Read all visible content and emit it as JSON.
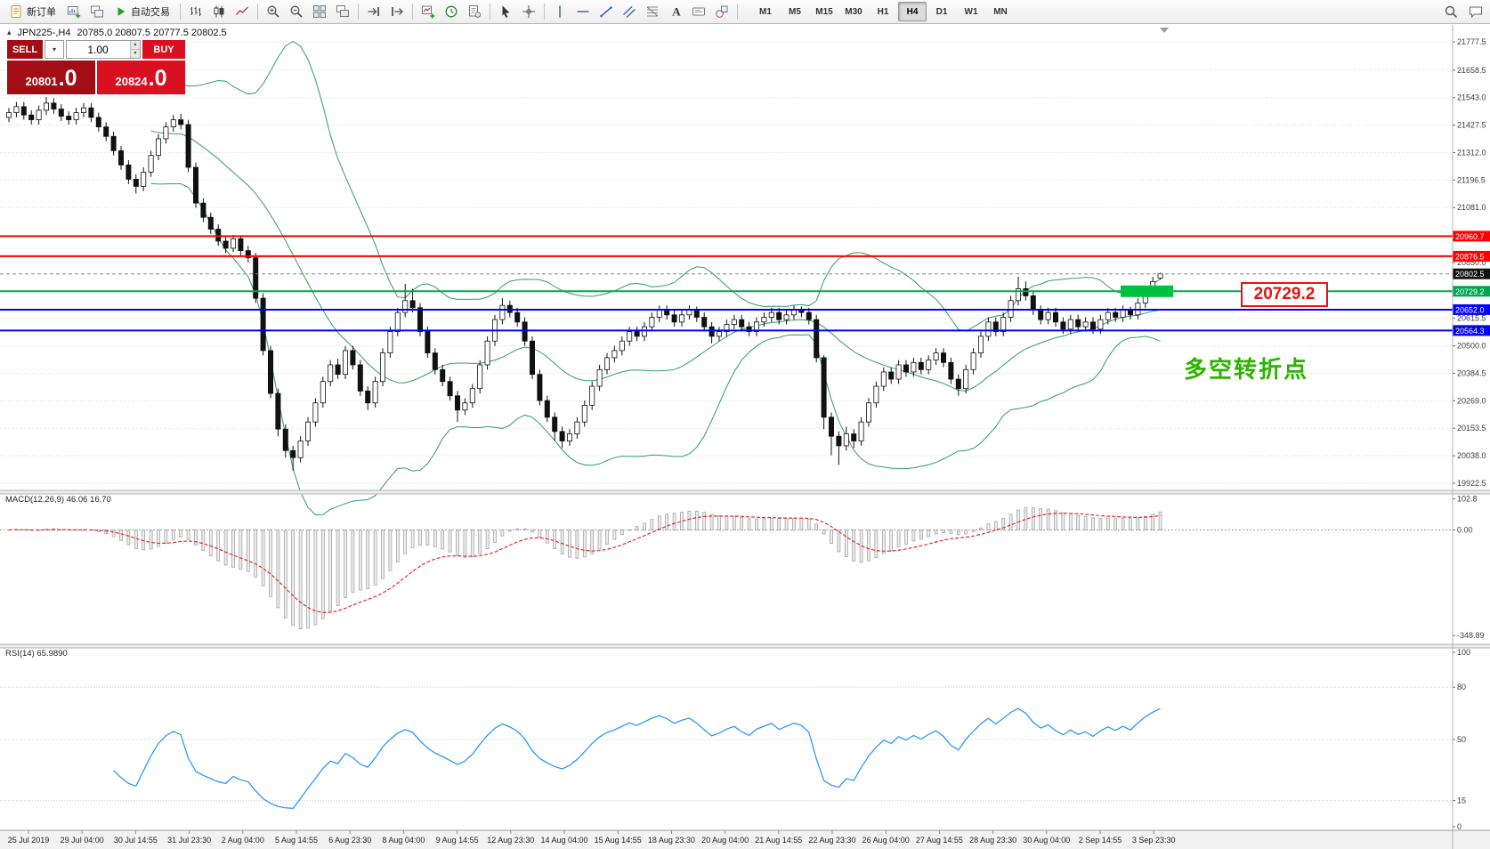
{
  "toolbar": {
    "new_order_label": "新订单",
    "auto_trading_label": "自动交易",
    "timeframes": [
      {
        "label": "M1",
        "active": false
      },
      {
        "label": "M5",
        "active": false
      },
      {
        "label": "M15",
        "active": false
      },
      {
        "label": "M30",
        "active": false
      },
      {
        "label": "H1",
        "active": false
      },
      {
        "label": "H4",
        "active": true
      },
      {
        "label": "D1",
        "active": false
      },
      {
        "label": "W1",
        "active": false
      },
      {
        "label": "MN",
        "active": false
      }
    ],
    "icon_names": [
      "new-order",
      "new-chart",
      "profiles",
      "auto-trading",
      "bars-chart",
      "candlestick-chart",
      "line-chart",
      "zoom-in",
      "zoom-out",
      "tile-windows",
      "cascade-windows",
      "auto-scroll",
      "chart-shift",
      "indicators",
      "periods",
      "templates",
      "cursor",
      "crosshair",
      "vertical-line",
      "horizontal-line",
      "trendline",
      "channel",
      "fibonacci",
      "text",
      "text-label",
      "shapes",
      "search",
      "chat"
    ]
  },
  "chart": {
    "symbol_line": {
      "symbol": "JPN225-,H4",
      "ohlc": "20785.0 20807.5 20777.5 20802.5"
    },
    "one_click": {
      "sell_label": "SELL",
      "buy_label": "BUY",
      "volume": "1.00",
      "bid_main": "20801",
      "bid_pips": ".0",
      "ask_main": "20824",
      "ask_pips": ".0"
    },
    "y_axis_values": [
      21777.5,
      21658.5,
      21543.0,
      21427.5,
      21312.0,
      21196.5,
      21081.0,
      20850.0,
      20615.5,
      20500.0,
      20384.5,
      20269.0,
      20153.5,
      20038.0,
      19922.5
    ],
    "hlines": [
      {
        "price": 20960.7,
        "label": "20960.7",
        "color": "#ff0000"
      },
      {
        "price": 20876.5,
        "label": "20876.5",
        "color": "#ff0000"
      },
      {
        "price": 20729.2,
        "label": "20729.2",
        "color": "#00a651"
      },
      {
        "price": 20652.0,
        "label": "20652.0",
        "color": "#0000ff"
      },
      {
        "price": 20564.3,
        "label": "20564.3",
        "color": "#0000ff"
      }
    ],
    "current_price": {
      "value": 20802.5,
      "label": "20802.5"
    },
    "annotations": {
      "big_price_label": "20729.2",
      "turning_point": "多空转折点"
    },
    "x_axis_labels": [
      "25 Jul 2019",
      "29 Jul 04:00",
      "30 Jul 14:55",
      "31 Jul 23:30",
      "2 Aug 04:00",
      "5 Aug 14:55",
      "6 Aug 23:30",
      "8 Aug 04:00",
      "9 Aug 14:55",
      "12 Aug 23:30",
      "14 Aug 04:00",
      "15 Aug 14:55",
      "18 Aug 23:30",
      "20 Aug 04:00",
      "21 Aug 14:55",
      "22 Aug 23:30",
      "26 Aug 04:00",
      "27 Aug 14:55",
      "28 Aug 23:30",
      "30 Aug 04:00",
      "2 Sep 14:55",
      "3 Sep 23:30"
    ]
  },
  "macd": {
    "legend": "MACD(12,26,9) 46.06 16.70",
    "axis": [
      {
        "v": 102.8,
        "label": "102.8"
      },
      {
        "v": 0,
        "label": "0.00"
      },
      {
        "v": -348.89,
        "label": "-348.89"
      }
    ],
    "fast": 12,
    "slow": 26,
    "signal": 9,
    "last_main": 46.06,
    "last_signal": 16.7
  },
  "rsi": {
    "legend": "RSI(14) 65.9890",
    "axis": [
      {
        "v": 100,
        "label": "100"
      },
      {
        "v": 80,
        "label": "80"
      },
      {
        "v": 50,
        "label": "50"
      },
      {
        "v": 15,
        "label": "15"
      },
      {
        "v": 0,
        "label": "0"
      }
    ],
    "levels": [
      80,
      50,
      15
    ],
    "period": 14,
    "last": 65.989
  },
  "colors": {
    "bull": "#ffffff",
    "bear": "#111111",
    "candle_stroke": "#111111",
    "bollinger": "#2f9e63",
    "grid": "#d9d9d9",
    "axis_text": "#3c3c3c",
    "macd_hist_fill": "#ededed",
    "macd_hist_stroke": "#9a9a9a",
    "macd_signal": "#e03030",
    "rsi_line": "#1e90ff",
    "tag_black": "#111111",
    "highlight_green": "#00c040",
    "callout_red": "#e81212",
    "annotation_green": "#2db200",
    "sell_dark": "#a30d16",
    "buy_red": "#d8101f"
  },
  "chart_data": {
    "type": "candlestick",
    "title": "JPN225-,H4",
    "timeframe": "H4",
    "ylim": [
      19922.5,
      21777.5
    ],
    "last_ohlc": {
      "open": 20785.0,
      "high": 20807.5,
      "low": 20777.5,
      "close": 20802.5
    },
    "indicators": {
      "bollinger_period": 20,
      "bollinger_deviation": 2,
      "macd": [
        12,
        26,
        9
      ],
      "macd_last": [
        46.06,
        16.7
      ],
      "rsi_period": 14,
      "rsi_last": 65.989
    },
    "candles": [
      [
        21460,
        21500,
        21440,
        21480
      ],
      [
        21480,
        21525,
        21460,
        21505
      ],
      [
        21505,
        21525,
        21450,
        21470
      ],
      [
        21470,
        21490,
        21430,
        21450
      ],
      [
        21450,
        21510,
        21430,
        21490
      ],
      [
        21490,
        21545,
        21470,
        21520
      ],
      [
        21520,
        21540,
        21475,
        21495
      ],
      [
        21495,
        21515,
        21445,
        21465
      ],
      [
        21465,
        21485,
        21430,
        21450
      ],
      [
        21450,
        21500,
        21430,
        21480
      ],
      [
        21480,
        21520,
        21460,
        21500
      ],
      [
        21500,
        21520,
        21440,
        21460
      ],
      [
        21460,
        21480,
        21400,
        21420
      ],
      [
        21420,
        21440,
        21360,
        21380
      ],
      [
        21380,
        21400,
        21300,
        21320
      ],
      [
        21320,
        21340,
        21240,
        21260
      ],
      [
        21260,
        21280,
        21180,
        21200
      ],
      [
        21200,
        21220,
        21140,
        21170
      ],
      [
        21170,
        21250,
        21150,
        21230
      ],
      [
        21230,
        21320,
        21210,
        21300
      ],
      [
        21300,
        21390,
        21280,
        21370
      ],
      [
        21370,
        21440,
        21350,
        21420
      ],
      [
        21420,
        21470,
        21400,
        21450
      ],
      [
        21450,
        21475,
        21410,
        21430
      ],
      [
        21430,
        21450,
        21230,
        21250
      ],
      [
        21250,
        21270,
        21080,
        21100
      ],
      [
        21100,
        21120,
        21020,
        21040
      ],
      [
        21040,
        21060,
        20970,
        20990
      ],
      [
        20990,
        21010,
        20920,
        20940
      ],
      [
        20940,
        20960,
        20890,
        20910
      ],
      [
        20910,
        20965,
        20895,
        20950
      ],
      [
        20950,
        20965,
        20880,
        20900
      ],
      [
        20900,
        20920,
        20850,
        20870
      ],
      [
        20870,
        20890,
        20680,
        20700
      ],
      [
        20700,
        20720,
        20460,
        20480
      ],
      [
        20480,
        20500,
        20280,
        20300
      ],
      [
        20300,
        20320,
        20120,
        20150
      ],
      [
        20150,
        20170,
        20030,
        20060
      ],
      [
        20060,
        20080,
        19975,
        20030
      ],
      [
        20030,
        20120,
        20010,
        20100
      ],
      [
        20100,
        20200,
        20080,
        20180
      ],
      [
        20180,
        20280,
        20160,
        20260
      ],
      [
        20260,
        20370,
        20240,
        20350
      ],
      [
        20350,
        20440,
        20330,
        20420
      ],
      [
        20420,
        20445,
        20360,
        20380
      ],
      [
        20380,
        20500,
        20360,
        20480
      ],
      [
        20480,
        20500,
        20400,
        20420
      ],
      [
        20420,
        20440,
        20290,
        20310
      ],
      [
        20310,
        20330,
        20230,
        20260
      ],
      [
        20260,
        20370,
        20240,
        20350
      ],
      [
        20350,
        20490,
        20330,
        20470
      ],
      [
        20470,
        20580,
        20450,
        20560
      ],
      [
        20560,
        20660,
        20540,
        20640
      ],
      [
        20640,
        20760,
        20620,
        20690
      ],
      [
        20690,
        20740,
        20640,
        20660
      ],
      [
        20660,
        20680,
        20540,
        20560
      ],
      [
        20560,
        20580,
        20450,
        20470
      ],
      [
        20470,
        20490,
        20380,
        20400
      ],
      [
        20400,
        20420,
        20330,
        20350
      ],
      [
        20350,
        20370,
        20270,
        20290
      ],
      [
        20290,
        20310,
        20180,
        20230
      ],
      [
        20230,
        20280,
        20210,
        20260
      ],
      [
        20260,
        20340,
        20240,
        20320
      ],
      [
        20320,
        20440,
        20300,
        20420
      ],
      [
        20420,
        20540,
        20400,
        20520
      ],
      [
        20520,
        20630,
        20500,
        20610
      ],
      [
        20610,
        20700,
        20590,
        20670
      ],
      [
        20670,
        20690,
        20620,
        20640
      ],
      [
        20640,
        20660,
        20580,
        20600
      ],
      [
        20600,
        20620,
        20500,
        20520
      ],
      [
        20520,
        20540,
        20360,
        20380
      ],
      [
        20380,
        20400,
        20250,
        20270
      ],
      [
        20270,
        20290,
        20180,
        20200
      ],
      [
        20200,
        20220,
        20100,
        20140
      ],
      [
        20140,
        20160,
        20070,
        20100
      ],
      [
        20100,
        20150,
        20080,
        20130
      ],
      [
        20130,
        20200,
        20110,
        20180
      ],
      [
        20180,
        20270,
        20160,
        20250
      ],
      [
        20250,
        20350,
        20230,
        20330
      ],
      [
        20330,
        20420,
        20310,
        20400
      ],
      [
        20400,
        20470,
        20380,
        20450
      ],
      [
        20450,
        20500,
        20430,
        20480
      ],
      [
        20480,
        20540,
        20460,
        20520
      ],
      [
        20520,
        20580,
        20500,
        20560
      ],
      [
        20560,
        20580,
        20520,
        20540
      ],
      [
        20540,
        20600,
        20520,
        20580
      ],
      [
        20580,
        20640,
        20560,
        20620
      ],
      [
        20620,
        20670,
        20600,
        20650
      ],
      [
        20650,
        20670,
        20610,
        20630
      ],
      [
        20630,
        20650,
        20580,
        20600
      ],
      [
        20600,
        20650,
        20580,
        20630
      ],
      [
        20630,
        20670,
        20610,
        20650
      ],
      [
        20650,
        20665,
        20600,
        20620
      ],
      [
        20620,
        20640,
        20560,
        20580
      ],
      [
        20580,
        20600,
        20510,
        20540
      ],
      [
        20540,
        20580,
        20520,
        20560
      ],
      [
        20560,
        20610,
        20540,
        20590
      ],
      [
        20590,
        20630,
        20570,
        20610
      ],
      [
        20610,
        20630,
        20560,
        20580
      ],
      [
        20580,
        20600,
        20540,
        20560
      ],
      [
        20560,
        20620,
        20540,
        20600
      ],
      [
        20600,
        20640,
        20580,
        20620
      ],
      [
        20620,
        20660,
        20600,
        20640
      ],
      [
        20640,
        20660,
        20590,
        20610
      ],
      [
        20610,
        20650,
        20590,
        20630
      ],
      [
        20630,
        20670,
        20610,
        20650
      ],
      [
        20650,
        20665,
        20620,
        20640
      ],
      [
        20640,
        20660,
        20590,
        20610
      ],
      [
        20610,
        20630,
        20430,
        20450
      ],
      [
        20450,
        20460,
        20150,
        20200
      ],
      [
        20200,
        20220,
        20040,
        20120
      ],
      [
        20120,
        20140,
        20000,
        20080
      ],
      [
        20080,
        20160,
        20060,
        20130
      ],
      [
        20130,
        20150,
        20070,
        20100
      ],
      [
        20100,
        20200,
        20080,
        20180
      ],
      [
        20180,
        20280,
        20160,
        20260
      ],
      [
        20260,
        20350,
        20240,
        20330
      ],
      [
        20330,
        20410,
        20310,
        20390
      ],
      [
        20390,
        20410,
        20340,
        20360
      ],
      [
        20360,
        20440,
        20340,
        20420
      ],
      [
        20420,
        20440,
        20370,
        20390
      ],
      [
        20390,
        20450,
        20370,
        20430
      ],
      [
        20430,
        20450,
        20380,
        20400
      ],
      [
        20400,
        20460,
        20380,
        20440
      ],
      [
        20440,
        20490,
        20420,
        20470
      ],
      [
        20470,
        20490,
        20410,
        20430
      ],
      [
        20430,
        20450,
        20340,
        20360
      ],
      [
        20360,
        20380,
        20290,
        20320
      ],
      [
        20320,
        20420,
        20300,
        20400
      ],
      [
        20400,
        20490,
        20380,
        20470
      ],
      [
        20470,
        20560,
        20450,
        20540
      ],
      [
        20540,
        20620,
        20520,
        20600
      ],
      [
        20600,
        20620,
        20540,
        20560
      ],
      [
        20560,
        20640,
        20540,
        20620
      ],
      [
        20620,
        20710,
        20600,
        20690
      ],
      [
        20690,
        20790,
        20670,
        20740
      ],
      [
        20740,
        20770,
        20690,
        20710
      ],
      [
        20710,
        20730,
        20630,
        20650
      ],
      [
        20650,
        20670,
        20590,
        20610
      ],
      [
        20610,
        20660,
        20590,
        20640
      ],
      [
        20640,
        20660,
        20580,
        20600
      ],
      [
        20600,
        20620,
        20550,
        20570
      ],
      [
        20570,
        20630,
        20550,
        20610
      ],
      [
        20610,
        20630,
        20560,
        20580
      ],
      [
        20580,
        20620,
        20560,
        20600
      ],
      [
        20600,
        20620,
        20550,
        20570
      ],
      [
        20570,
        20630,
        20550,
        20610
      ],
      [
        20610,
        20660,
        20590,
        20640
      ],
      [
        20640,
        20660,
        20600,
        20620
      ],
      [
        20620,
        20670,
        20600,
        20650
      ],
      [
        20650,
        20665,
        20610,
        20630
      ],
      [
        20630,
        20700,
        20610,
        20680
      ],
      [
        20680,
        20750,
        20660,
        20730
      ],
      [
        20730,
        20790,
        20710,
        20770
      ],
      [
        20785,
        20807.5,
        20777.5,
        20802.5
      ]
    ]
  }
}
